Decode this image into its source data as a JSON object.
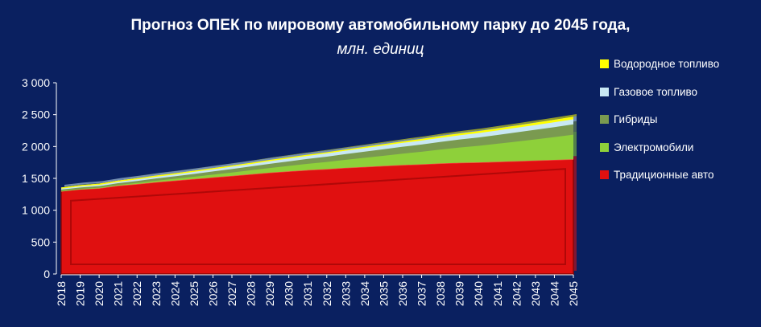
{
  "chart_data": {
    "type": "area",
    "title": "Прогноз ОПЕК по мировому автомобильному парку до 2045 года,",
    "subtitle": "млн. единиц",
    "xlabel": "",
    "ylabel": "",
    "stacked": true,
    "ylim": [
      0,
      3000
    ],
    "yticks": [
      "0",
      "500",
      "1 000",
      "1 500",
      "2 000",
      "2 500",
      "3 000"
    ],
    "grid": false,
    "legend_position": "right",
    "x": [
      "2018",
      "2019",
      "2020",
      "2021",
      "2022",
      "2023",
      "2024",
      "2025",
      "2026",
      "2027",
      "2028",
      "2029",
      "2030",
      "2031",
      "2032",
      "2033",
      "2034",
      "2035",
      "2036",
      "2037",
      "2038",
      "2039",
      "2040",
      "2041",
      "2042",
      "2043",
      "2044",
      "2045"
    ],
    "series": [
      {
        "name": "Традиционные авто",
        "color": "#e01010",
        "values": [
          1300,
          1330,
          1345,
          1385,
          1410,
          1440,
          1465,
          1490,
          1515,
          1540,
          1565,
          1590,
          1610,
          1630,
          1645,
          1665,
          1680,
          1695,
          1710,
          1720,
          1735,
          1745,
          1750,
          1760,
          1770,
          1780,
          1790,
          1800
        ]
      },
      {
        "name": "Электромобили",
        "color": "#8ed03a",
        "values": [
          3,
          5,
          8,
          12,
          17,
          22,
          28,
          35,
          43,
          52,
          62,
          73,
          85,
          98,
          112,
          127,
          143,
          160,
          178,
          197,
          217,
          238,
          260,
          283,
          307,
          332,
          358,
          385
        ]
      },
      {
        "name": "Гибриды",
        "color": "#7a9a50",
        "values": [
          20,
          22,
          25,
          28,
          32,
          36,
          40,
          45,
          50,
          55,
          60,
          66,
          72,
          78,
          84,
          90,
          96,
          102,
          108,
          114,
          120,
          126,
          132,
          138,
          144,
          150,
          156,
          162
        ]
      },
      {
        "name": "Газовое топливо",
        "color": "#c8e8f4",
        "values": [
          25,
          27,
          29,
          31,
          33,
          35,
          37,
          39,
          41,
          43,
          45,
          47,
          49,
          51,
          53,
          55,
          57,
          59,
          61,
          63,
          65,
          67,
          69,
          71,
          73,
          75,
          77,
          79
        ]
      },
      {
        "name": "Водородное топливо",
        "color": "#ffff00",
        "values": [
          0,
          0,
          0,
          0,
          1,
          1,
          1,
          2,
          2,
          3,
          3,
          4,
          5,
          6,
          7,
          8,
          10,
          12,
          14,
          16,
          18,
          20,
          22,
          24,
          26,
          28,
          30,
          32
        ]
      }
    ]
  }
}
